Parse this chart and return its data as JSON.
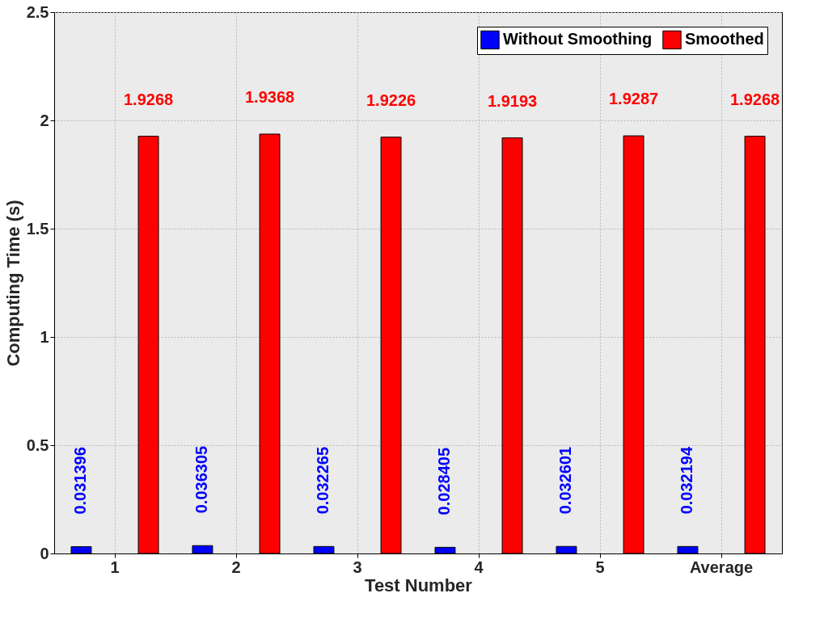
{
  "chart_data": {
    "type": "bar",
    "xlabel": "Test Number",
    "ylabel": "Computing Time (s)",
    "categories": [
      "1",
      "2",
      "3",
      "4",
      "5",
      "Average"
    ],
    "series": [
      {
        "name": "Without Smoothing",
        "color": "#0000ff",
        "values": [
          0.031396,
          0.036305,
          0.032265,
          0.028405,
          0.032601,
          0.032194
        ]
      },
      {
        "name": "Smoothed",
        "color": "#ff0000",
        "values": [
          1.9268,
          1.9368,
          1.9226,
          1.9193,
          1.9287,
          1.9268
        ]
      }
    ],
    "ylim": [
      0,
      2.5
    ],
    "yticks": [
      0,
      0.5,
      1,
      1.5,
      2,
      2.5
    ],
    "grid": true,
    "legend": "top right",
    "data_labels": true
  }
}
